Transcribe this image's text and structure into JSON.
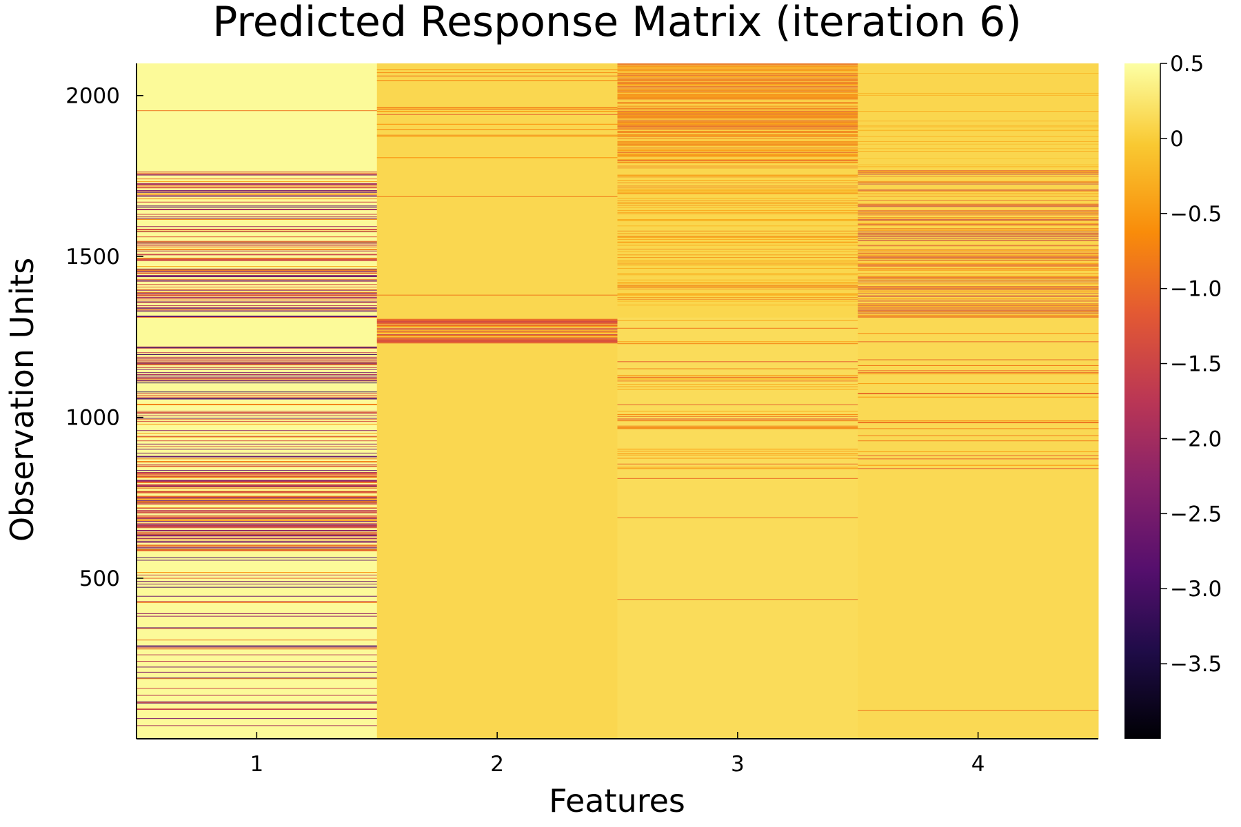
{
  "chart_data": {
    "type": "heatmap",
    "title": "Predicted Response Matrix (iteration 6)",
    "xlabel": "Features",
    "ylabel": "Observation Units",
    "x_categories": [
      "1",
      "2",
      "3",
      "4"
    ],
    "xlim": [
      0.5,
      4.5
    ],
    "ylim": [
      1,
      2100
    ],
    "y_ticks": [
      500,
      1000,
      1500,
      2000
    ],
    "y_tick_labels": [
      "500",
      "1000",
      "1500",
      "2000"
    ],
    "colorbar": {
      "colormap": "inferno",
      "range": [
        -4.0,
        0.5
      ],
      "ticks": [
        0.5,
        0,
        -0.5,
        -1.0,
        -1.5,
        -2.0,
        -2.5,
        -3.0,
        -3.5
      ],
      "tick_labels": [
        "0.5",
        "0",
        "−0.5",
        "−1.0",
        "−1.5",
        "−2.0",
        "−2.5",
        "−3.0",
        "−3.5"
      ]
    },
    "columns": [
      {
        "feature": "1",
        "base_value": 0.45,
        "bands": [
          {
            "from": 1,
            "to": 580,
            "base": 0.45,
            "density": 0.16,
            "low": -3.2,
            "high": -0.6
          },
          {
            "from": 580,
            "to": 830,
            "base": 0.45,
            "density": 0.5,
            "low": -2.6,
            "high": -0.4
          },
          {
            "from": 830,
            "to": 1220,
            "base": 0.45,
            "density": 0.3,
            "low": -3.2,
            "high": -0.5
          },
          {
            "from": 1220,
            "to": 1310,
            "base": 0.45,
            "density": 0.0,
            "low": 0,
            "high": 0
          },
          {
            "from": 1310,
            "to": 1770,
            "base": 0.45,
            "density": 0.4,
            "low": -2.8,
            "high": -0.4
          },
          {
            "from": 1770,
            "to": 2100,
            "base": 0.45,
            "density": 0.004,
            "low": -1.0,
            "high": -0.8
          }
        ]
      },
      {
        "feature": "2",
        "base_value": 0.1,
        "bands": [
          {
            "from": 1,
            "to": 1230,
            "base": 0.1,
            "density": 0.0,
            "low": 0,
            "high": 0
          },
          {
            "from": 1230,
            "to": 1305,
            "base": 0.1,
            "density": 0.75,
            "low": -1.6,
            "high": -0.6
          },
          {
            "from": 1305,
            "to": 1800,
            "base": 0.1,
            "density": 0.004,
            "low": -1.0,
            "high": -0.8
          },
          {
            "from": 1800,
            "to": 2100,
            "base": 0.1,
            "density": 0.08,
            "low": -1.2,
            "high": -0.5
          }
        ]
      },
      {
        "feature": "3",
        "base_value": 0.15,
        "bands": [
          {
            "from": 1,
            "to": 840,
            "base": 0.15,
            "density": 0.003,
            "low": -1.0,
            "high": -0.8
          },
          {
            "from": 840,
            "to": 1310,
            "base": 0.15,
            "density": 0.12,
            "low": -1.2,
            "high": -0.3
          },
          {
            "from": 1310,
            "to": 1790,
            "base": 0.0,
            "density": 0.3,
            "low": -1.0,
            "high": -0.3
          },
          {
            "from": 1790,
            "to": 2100,
            "base": -0.2,
            "density": 0.6,
            "low": -1.3,
            "high": -0.5
          }
        ]
      },
      {
        "feature": "4",
        "base_value": 0.12,
        "bands": [
          {
            "from": 1,
            "to": 840,
            "base": 0.12,
            "density": 0.003,
            "low": -1.0,
            "high": -0.8
          },
          {
            "from": 840,
            "to": 1310,
            "base": 0.12,
            "density": 0.1,
            "low": -1.3,
            "high": -0.4
          },
          {
            "from": 1310,
            "to": 1770,
            "base": 0.05,
            "density": 0.45,
            "low": -1.8,
            "high": -0.4
          },
          {
            "from": 1770,
            "to": 2100,
            "base": 0.05,
            "density": 0.1,
            "low": -0.5,
            "high": -0.1
          }
        ]
      }
    ]
  }
}
